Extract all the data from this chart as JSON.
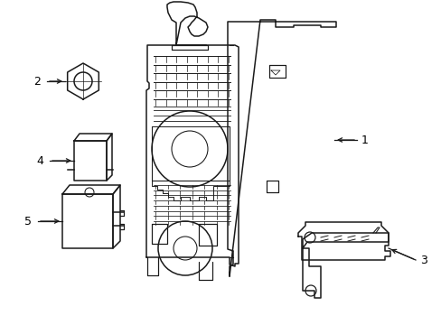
{
  "background_color": "#ffffff",
  "line_color": "#1a1a1a",
  "line_width": 1.1,
  "label_color": "#000000",
  "figsize": [
    4.89,
    3.6
  ],
  "dpi": 100
}
